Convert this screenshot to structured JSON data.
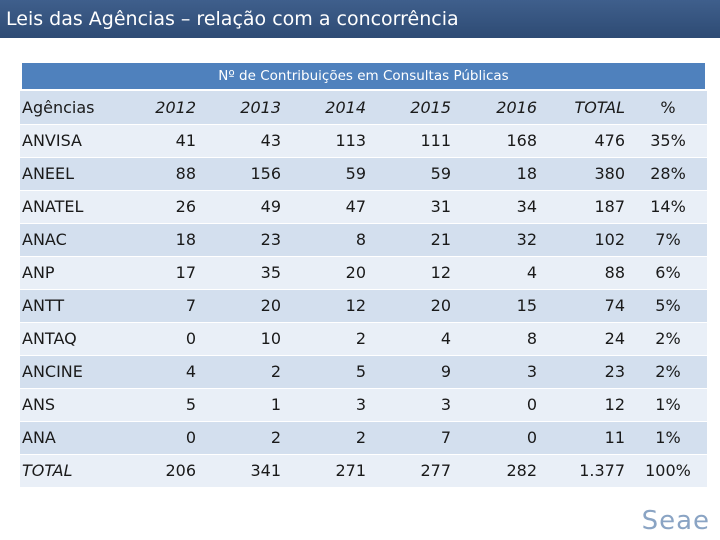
{
  "header": {
    "title": "Leis das Agências – relação com a concorrência"
  },
  "table": {
    "caption": "Nº de Contribuições em Consultas Públicas",
    "columns": [
      "Agências",
      "2012",
      "2013",
      "2014",
      "2015",
      "2016",
      "TOTAL",
      "%"
    ],
    "rows": [
      [
        "ANVISA",
        "41",
        "43",
        "113",
        "111",
        "168",
        "476",
        "35%"
      ],
      [
        "ANEEL",
        "88",
        "156",
        "59",
        "59",
        "18",
        "380",
        "28%"
      ],
      [
        "ANATEL",
        "26",
        "49",
        "47",
        "31",
        "34",
        "187",
        "14%"
      ],
      [
        "ANAC",
        "18",
        "23",
        "8",
        "21",
        "32",
        "102",
        "7%"
      ],
      [
        "ANP",
        "17",
        "35",
        "20",
        "12",
        "4",
        "88",
        "6%"
      ],
      [
        "ANTT",
        "7",
        "20",
        "12",
        "20",
        "15",
        "74",
        "5%"
      ],
      [
        "ANTAQ",
        "0",
        "10",
        "2",
        "4",
        "8",
        "24",
        "2%"
      ],
      [
        "ANCINE",
        "4",
        "2",
        "5",
        "9",
        "3",
        "23",
        "2%"
      ],
      [
        "ANS",
        "5",
        "1",
        "3",
        "3",
        "0",
        "12",
        "1%"
      ],
      [
        "ANA",
        "0",
        "2",
        "2",
        "7",
        "0",
        "11",
        "1%"
      ]
    ],
    "total_row": [
      "TOTAL",
      "206",
      "341",
      "271",
      "277",
      "282",
      "1.377",
      "100%"
    ]
  },
  "logo": {
    "text": "Seae"
  }
}
